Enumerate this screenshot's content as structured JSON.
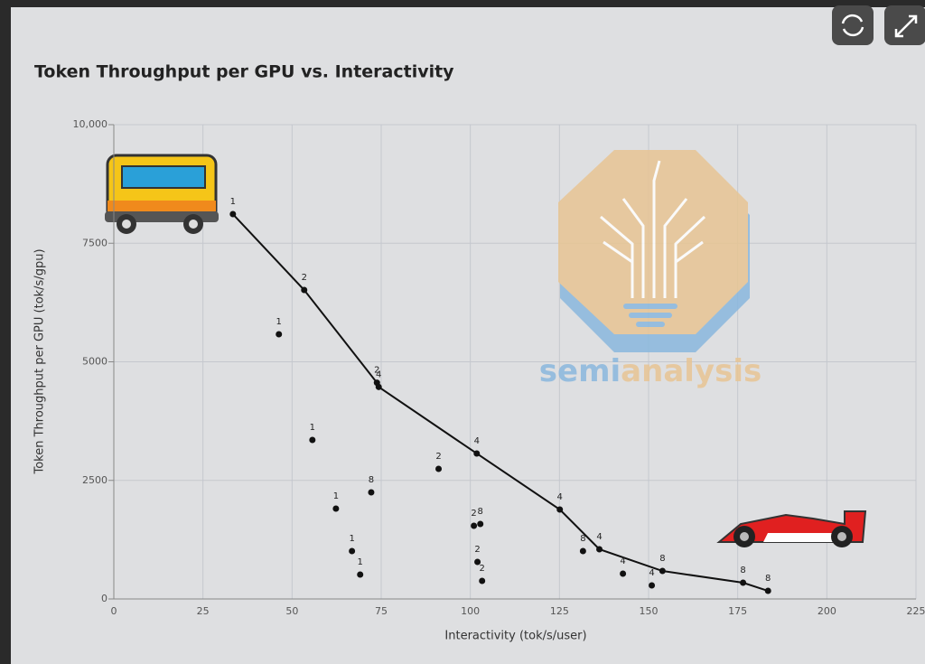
{
  "chart_data": {
    "type": "scatter",
    "title": "Token Throughput per GPU vs. Interactivity",
    "x_label": "Interactivity (tok/s/user)",
    "y_label": "Token Throughput per GPU (tok/s/gpu)",
    "watermark": [
      "semi",
      "analysis"
    ],
    "xlim": [
      0,
      225
    ],
    "xticks": [
      0,
      25,
      50,
      75,
      100,
      125,
      150,
      175,
      200,
      225
    ],
    "ylim": [
      0,
      10000
    ],
    "yticks": [
      0,
      2500,
      5000,
      7500,
      {
        "value": 10000,
        "label": "10,000"
      }
    ],
    "grid": true,
    "series": [
      {
        "color": "#111111",
        "connected": true,
        "x": [
          33.4,
          53.4,
          73.8,
          74.3,
          101.8,
          125.1,
          136.2,
          153.9,
          176.5,
          183.5
        ],
        "values": [
          8114,
          6514,
          4560,
          4470,
          3067,
          1886,
          1048,
          590,
          343,
          171
        ],
        "point_labels": [
          1,
          2,
          2,
          4,
          4,
          4,
          4,
          8,
          8,
          8
        ]
      },
      {
        "color": "#111111",
        "connected": false,
        "x": [
          46.3,
          55.7,
          91.1,
          72.2,
          62.3,
          101.0,
          102.8,
          66.8,
          69.1,
          102.0,
          103.3,
          131.6,
          142.8,
          150.9
        ],
        "values": [
          5581,
          3352,
          2743,
          2248,
          1905,
          1543,
          1581,
          1010,
          514,
          781,
          381,
          1010,
          533,
          286
        ],
        "point_labels": [
          1,
          1,
          2,
          8,
          1,
          2,
          8,
          1,
          1,
          2,
          2,
          8,
          4,
          4
        ]
      }
    ]
  }
}
